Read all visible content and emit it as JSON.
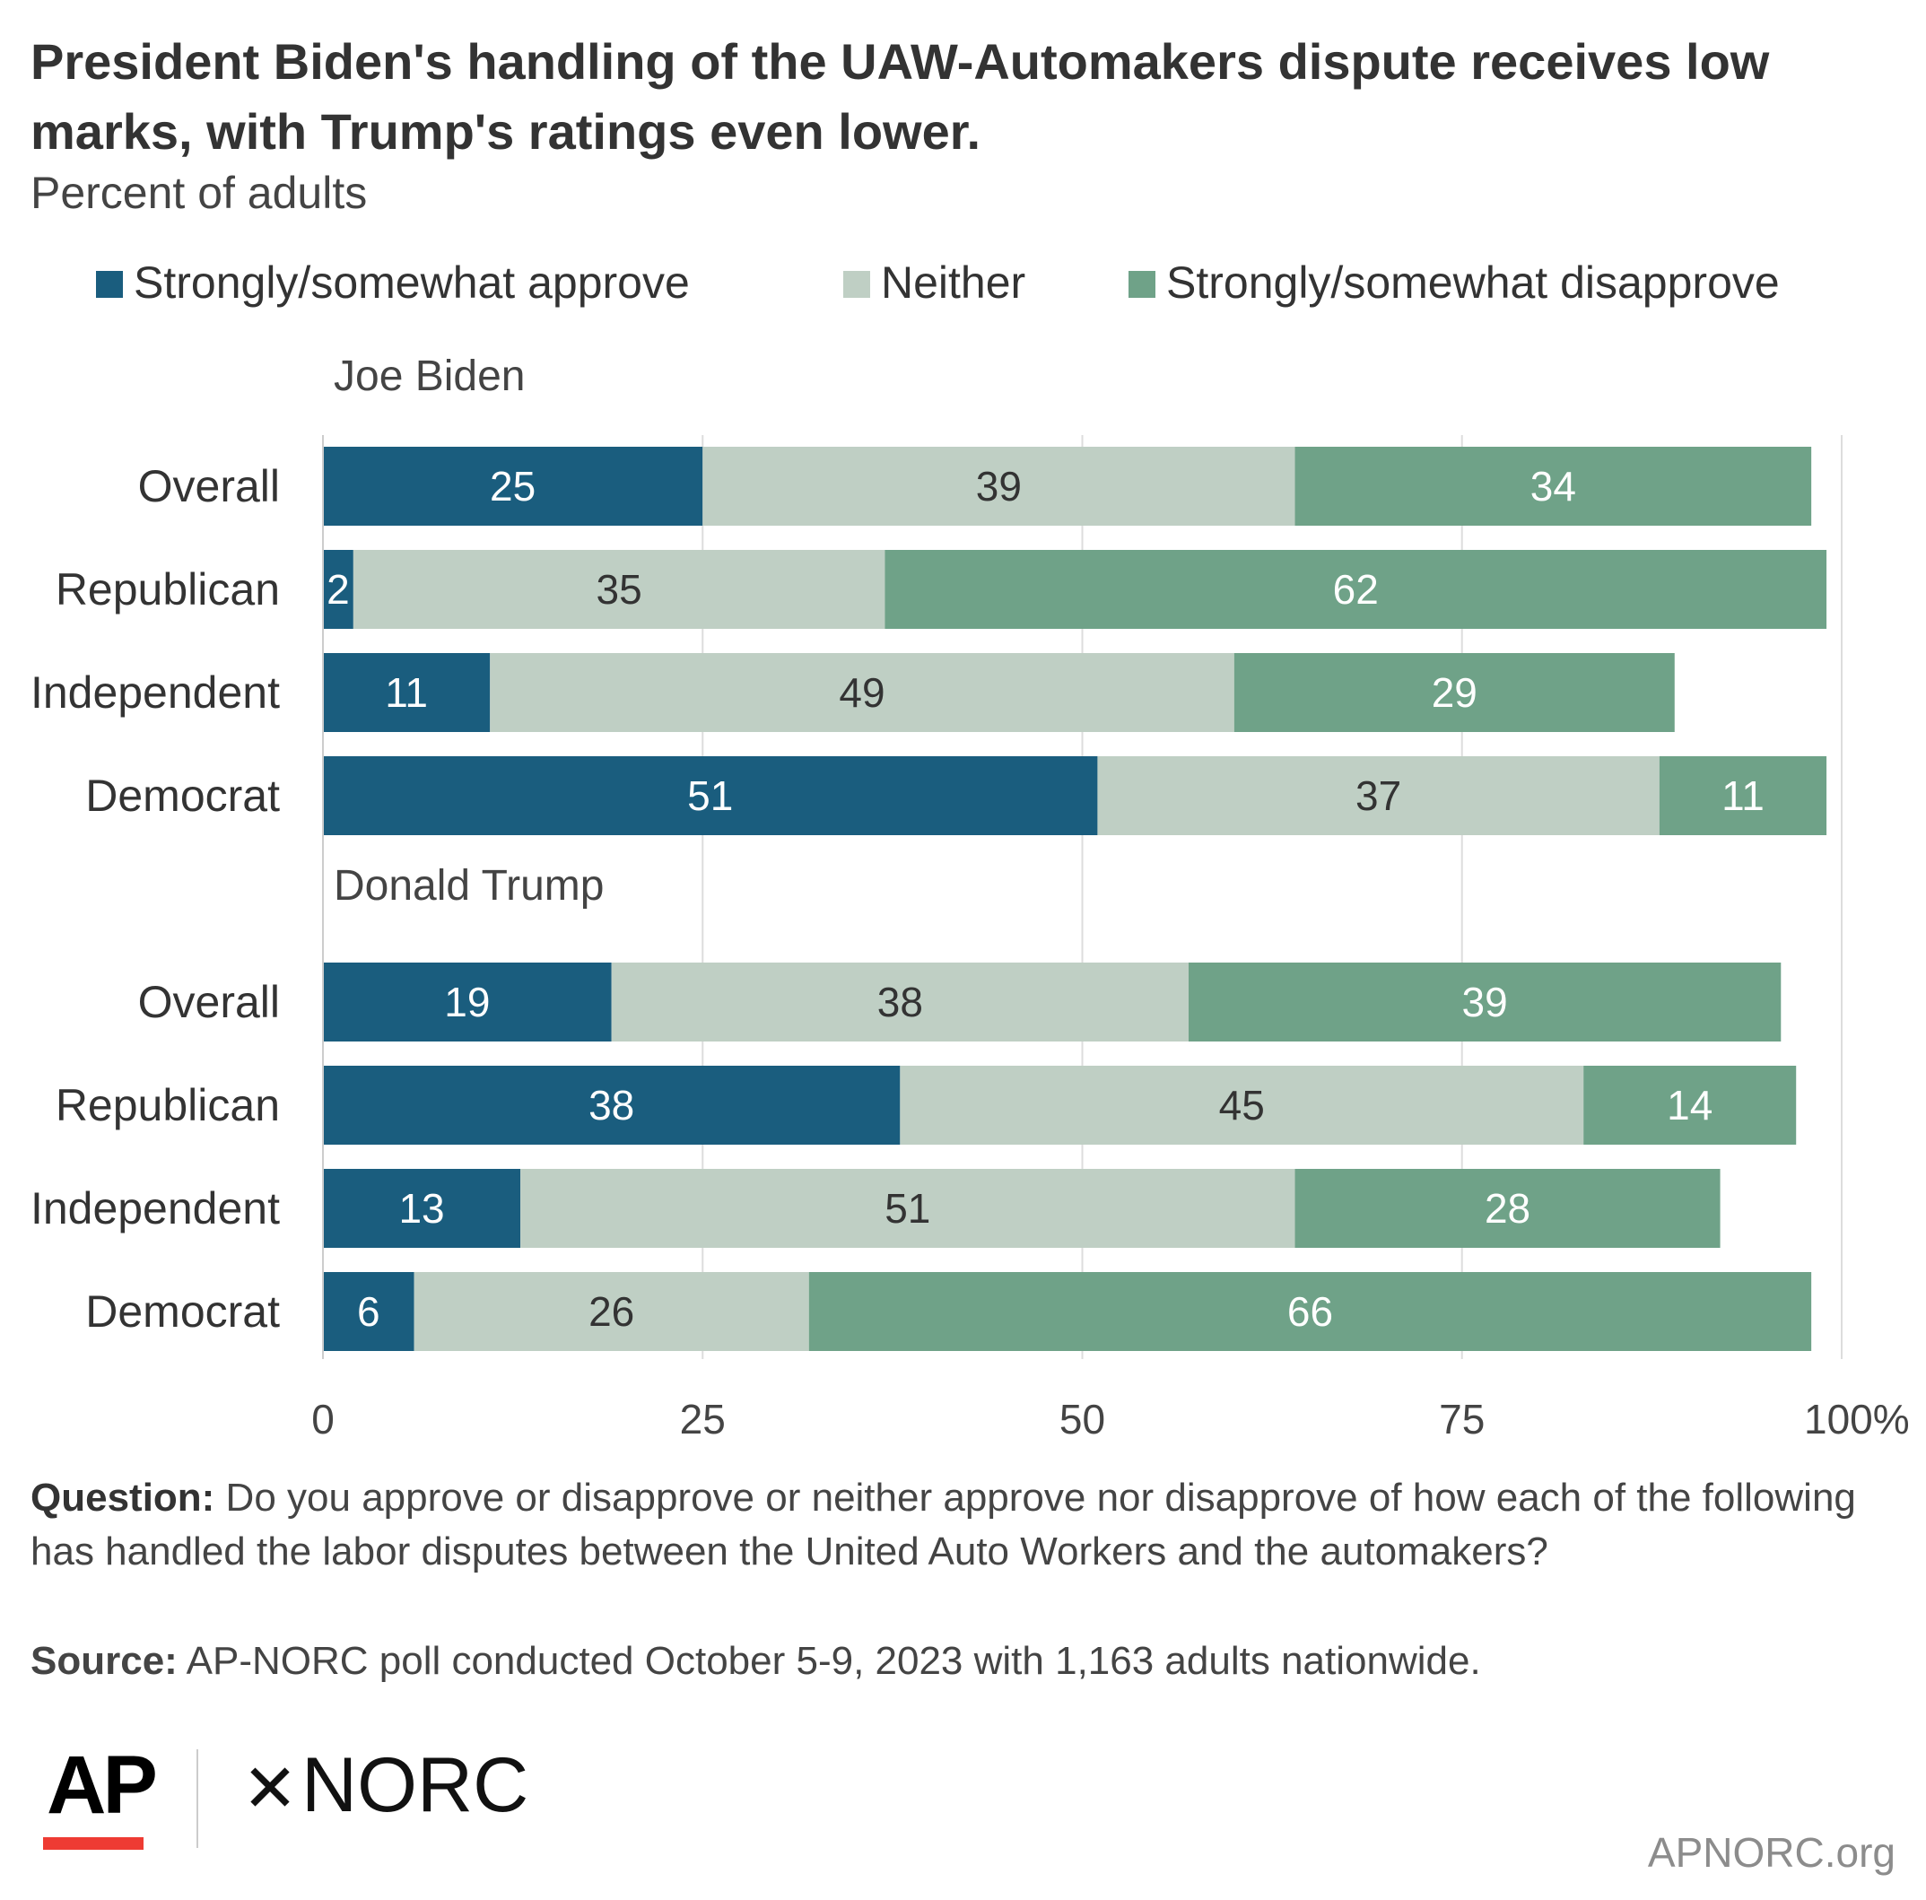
{
  "title": "President Biden's handling of the UAW-Automakers dispute receives low marks, with Trump's ratings even lower.",
  "subtitle": "Percent of adults",
  "colors": {
    "approve": "#1a5d7e",
    "neither": "#bfcfc4",
    "disapprove": "#6fa288",
    "grid": "#dddddd",
    "text_dark": "#333333",
    "text_light": "#ffffff"
  },
  "chart_data": {
    "type": "bar",
    "orientation": "horizontal",
    "stacked": true,
    "xlim": [
      0,
      100
    ],
    "x_ticks": [
      0,
      25,
      50,
      75,
      100
    ],
    "x_tick_labels": [
      "0",
      "25",
      "50",
      "75",
      "100%"
    ],
    "grid": true,
    "legend_position": "top",
    "series": [
      {
        "name": "Strongly/somewhat approve",
        "key": "approve"
      },
      {
        "name": "Neither",
        "key": "neither"
      },
      {
        "name": "Strongly/somewhat disapprove",
        "key": "disapprove"
      }
    ],
    "groups": [
      {
        "label": "Joe Biden",
        "rows": [
          {
            "category": "Overall",
            "values": [
              25,
              39,
              34
            ]
          },
          {
            "category": "Republican",
            "values": [
              2,
              35,
              62
            ]
          },
          {
            "category": "Independent",
            "values": [
              11,
              49,
              29
            ]
          },
          {
            "category": "Democrat",
            "values": [
              51,
              37,
              11
            ]
          }
        ]
      },
      {
        "label": "Donald Trump",
        "rows": [
          {
            "category": "Overall",
            "values": [
              19,
              38,
              39
            ]
          },
          {
            "category": "Republican",
            "values": [
              38,
              45,
              14
            ]
          },
          {
            "category": "Independent",
            "values": [
              13,
              51,
              28
            ]
          },
          {
            "category": "Democrat",
            "values": [
              6,
              26,
              66
            ]
          }
        ]
      }
    ]
  },
  "footnote": {
    "question_label": "Question:",
    "question_text": " Do you approve or disapprove or neither approve nor disapprove of how each of the following has handled the labor disputes between the United Auto Workers and the automakers?",
    "source_label": "Source:",
    "source_text": " AP-NORC poll conducted October 5-9, 2023 with 1,163 adults nationwide."
  },
  "logos": {
    "ap": "AP",
    "norc_mark": "✕",
    "norc": "NORC",
    "site": "APNORC.org"
  }
}
